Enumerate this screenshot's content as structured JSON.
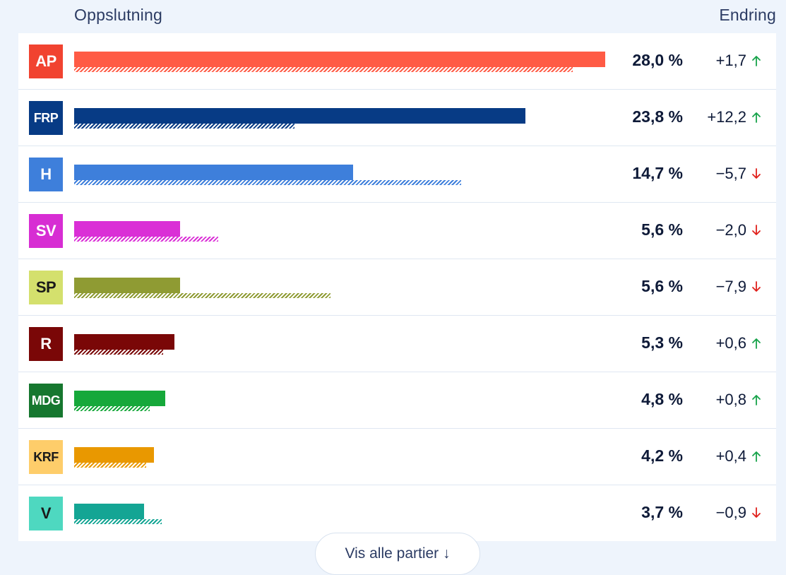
{
  "header": {
    "left": "Oppslutning",
    "right": "Endring"
  },
  "chart_data": {
    "type": "bar",
    "xlim": [
      0,
      30
    ],
    "series": [
      {
        "name": "current"
      },
      {
        "name": "previous"
      }
    ],
    "parties": [
      {
        "code": "AP",
        "value": 28.0,
        "value_label": "28,0 %",
        "previous": 26.3,
        "change": "+1,7",
        "direction": "up",
        "color": "#ff5b45",
        "badge_bg": "#f14330",
        "badge_fg": "#ffffff"
      },
      {
        "code": "FRP",
        "value": 23.8,
        "value_label": "23,8 %",
        "previous": 11.6,
        "change": "+12,2",
        "direction": "up",
        "color": "#073b85",
        "badge_bg": "#073b85",
        "badge_fg": "#ffffff"
      },
      {
        "code": "H",
        "value": 14.7,
        "value_label": "14,7 %",
        "previous": 20.4,
        "change": "−5,7",
        "direction": "down",
        "color": "#3e7fdb",
        "badge_bg": "#3e7fdb",
        "badge_fg": "#ffffff"
      },
      {
        "code": "SV",
        "value": 5.6,
        "value_label": "5,6 %",
        "previous": 7.6,
        "change": "−2,0",
        "direction": "down",
        "color": "#da2fd6",
        "badge_bg": "#d72dd3",
        "badge_fg": "#ffffff"
      },
      {
        "code": "SP",
        "value": 5.6,
        "value_label": "5,6 %",
        "previous": 13.5,
        "change": "−7,9",
        "direction": "down",
        "color": "#8f9b33",
        "badge_bg": "#d4e06d",
        "badge_fg": "#1a1a1a"
      },
      {
        "code": "R",
        "value": 5.3,
        "value_label": "5,3 %",
        "previous": 4.7,
        "change": "+0,6",
        "direction": "up",
        "color": "#7a0707",
        "badge_bg": "#7a0707",
        "badge_fg": "#ffffff"
      },
      {
        "code": "MDG",
        "value": 4.8,
        "value_label": "4,8 %",
        "previous": 4.0,
        "change": "+0,8",
        "direction": "up",
        "color": "#16a83a",
        "badge_bg": "#16772f",
        "badge_fg": "#ffffff"
      },
      {
        "code": "KRF",
        "value": 4.2,
        "value_label": "4,2 %",
        "previous": 3.8,
        "change": "+0,4",
        "direction": "up",
        "color": "#e99800",
        "badge_bg": "#fecd6a",
        "badge_fg": "#1a1a1a"
      },
      {
        "code": "V",
        "value": 3.7,
        "value_label": "3,7 %",
        "previous": 4.6,
        "change": "−0,9",
        "direction": "down",
        "color": "#14a594",
        "badge_bg": "#4ed8c0",
        "badge_fg": "#1a1a1a"
      }
    ]
  },
  "colors": {
    "up": "#17a34a",
    "down": "#e0201b"
  },
  "footer": {
    "button_label": "Vis alle partier ↓"
  }
}
